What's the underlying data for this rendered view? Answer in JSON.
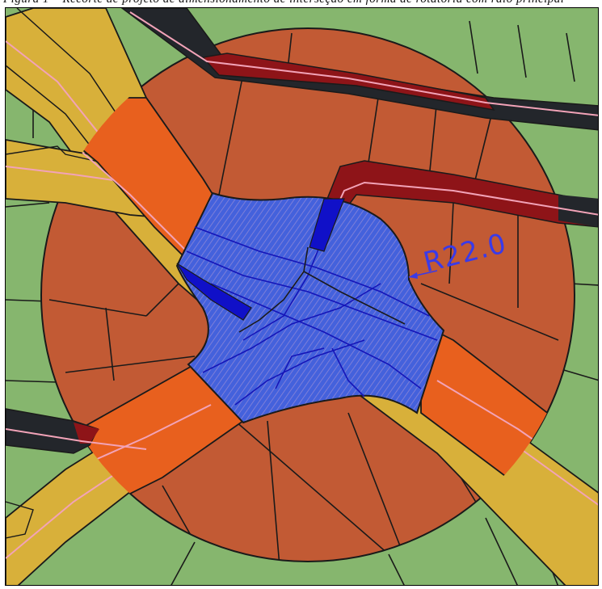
{
  "caption": {
    "text": "Figura 1 – Recorte de projeto de dimensionamento de interseção em forma de rotatória com raio principal"
  },
  "map": {
    "dimension_label": "R22.0",
    "colors": {
      "parcel_green": "#86b66e",
      "circle_brown": "#c25a34",
      "road_orange": "#e8601e",
      "road_yellow": "#d8b03a",
      "road_dark": "#23262b",
      "road_red": "#8e1418",
      "center_line": "#f2a3b8",
      "central_island_blue": "#3c58d8",
      "outline": "#1a1a1a",
      "dimension_blue": "#3a3ae8"
    }
  }
}
